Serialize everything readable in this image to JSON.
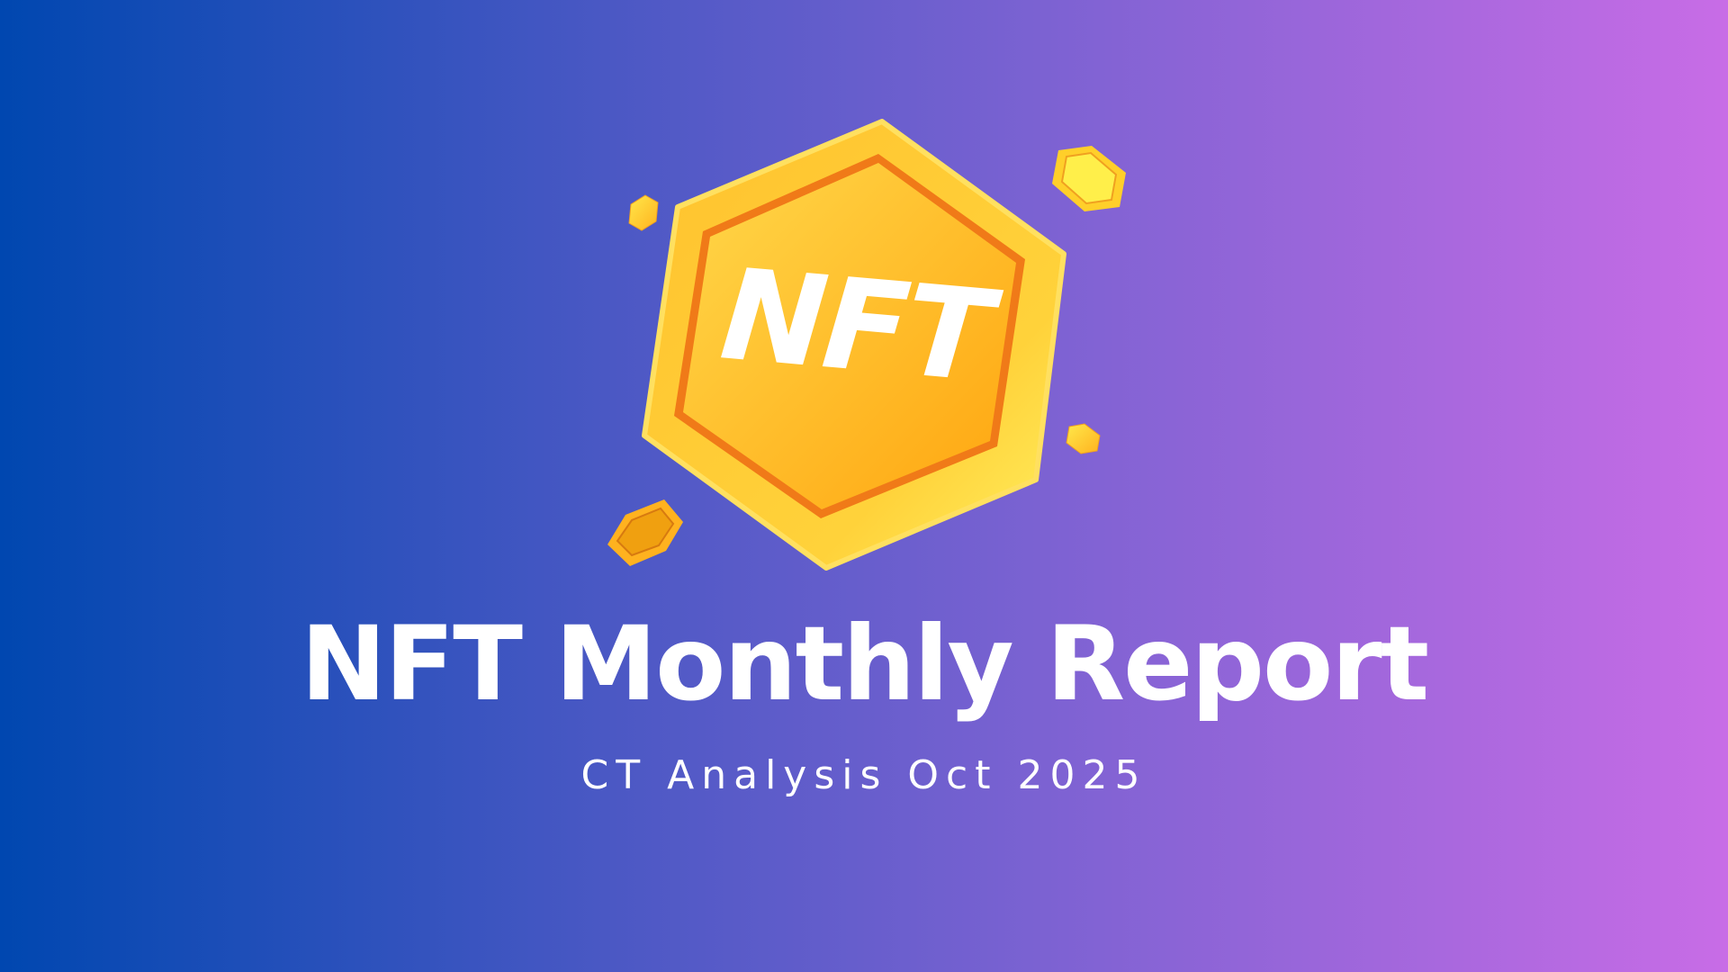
{
  "logo": {
    "text": "NFT",
    "icon": "nft-hexagon-coin-icon",
    "colors": {
      "face": "#ffb21f",
      "rim": "#ffd84a",
      "inner_border": "#f07a18"
    }
  },
  "title": "NFT Monthly Report",
  "subtitle": "CT Analysis Oct 2025",
  "colors": {
    "gradient_start": "#0047b0",
    "gradient_end": "#c86ce6",
    "text": "#ffffff"
  }
}
